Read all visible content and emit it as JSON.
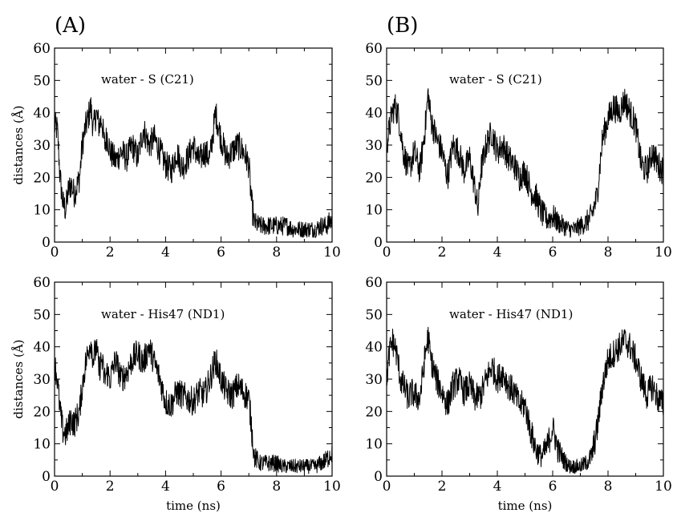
{
  "panel_labels": [
    "(A)",
    "(B)"
  ],
  "chart_data": [
    {
      "type": "line",
      "panel": "(A)",
      "annotation": "water - S (C21)",
      "xlabel": "",
      "ylabel": "distances (Å)",
      "xlim": [
        0,
        10
      ],
      "ylim": [
        0,
        60
      ],
      "xticks": [
        0,
        2,
        4,
        6,
        8,
        10
      ],
      "yticks": [
        0,
        10,
        20,
        30,
        40,
        50,
        60
      ],
      "grid": false,
      "series": [
        {
          "x": [
            0,
            0.1,
            0.2,
            0.3,
            0.4,
            0.5,
            0.6,
            0.7,
            0.8,
            0.9,
            1.0,
            1.1,
            1.2,
            1.3,
            1.4,
            1.5,
            1.6,
            1.7,
            1.8,
            1.9,
            2.0,
            2.2,
            2.4,
            2.6,
            2.8,
            3.0,
            3.2,
            3.4,
            3.6,
            3.8,
            4.0,
            4.2,
            4.4,
            4.6,
            4.8,
            5.0,
            5.2,
            5.4,
            5.6,
            5.8,
            6.0,
            6.2,
            6.4,
            6.6,
            6.8,
            7.0,
            7.1,
            7.2,
            7.4,
            7.6,
            7.8,
            8.0,
            8.2,
            8.4,
            8.6,
            8.8,
            9.0,
            9.2,
            9.4,
            9.6,
            9.8,
            10.0
          ],
          "y": [
            36,
            35,
            20,
            12,
            10,
            16,
            18,
            15,
            17,
            20,
            30,
            35,
            38,
            42,
            35,
            40,
            36,
            38,
            30,
            33,
            28,
            25,
            28,
            26,
            30,
            26,
            35,
            30,
            32,
            28,
            24,
            22,
            28,
            23,
            26,
            30,
            25,
            28,
            26,
            40,
            32,
            26,
            28,
            30,
            28,
            24,
            12,
            6,
            5,
            5,
            5,
            5,
            5,
            5,
            4,
            4,
            4,
            4,
            4,
            5,
            5,
            7
          ],
          "noise": 4.5
        }
      ]
    },
    {
      "type": "line",
      "panel": "(B)",
      "annotation": "water - S (C21)",
      "xlabel": "",
      "ylabel": "",
      "xlim": [
        0,
        10
      ],
      "ylim": [
        0,
        60
      ],
      "xticks": [
        0,
        2,
        4,
        6,
        8,
        10
      ],
      "yticks": [
        0,
        10,
        20,
        30,
        40,
        50,
        60
      ],
      "grid": false,
      "series": [
        {
          "x": [
            0,
            0.1,
            0.2,
            0.3,
            0.4,
            0.5,
            0.6,
            0.7,
            0.8,
            0.9,
            1.0,
            1.2,
            1.4,
            1.5,
            1.6,
            1.8,
            2.0,
            2.2,
            2.4,
            2.6,
            2.8,
            3.0,
            3.2,
            3.3,
            3.4,
            3.6,
            3.8,
            4.0,
            4.2,
            4.4,
            4.6,
            4.8,
            5.0,
            5.2,
            5.4,
            5.6,
            5.8,
            6.0,
            6.2,
            6.4,
            6.6,
            6.8,
            7.0,
            7.2,
            7.4,
            7.6,
            7.8,
            8.0,
            8.2,
            8.4,
            8.6,
            8.8,
            9.0,
            9.2,
            9.4,
            9.6,
            9.8,
            10.0
          ],
          "y": [
            30,
            35,
            40,
            42,
            40,
            35,
            28,
            25,
            22,
            25,
            28,
            22,
            36,
            46,
            38,
            32,
            28,
            20,
            30,
            28,
            22,
            26,
            16,
            10,
            22,
            30,
            34,
            28,
            30,
            26,
            24,
            20,
            22,
            16,
            14,
            9,
            7,
            8,
            6,
            5,
            4,
            4,
            5,
            6,
            8,
            14,
            32,
            38,
            42,
            40,
            44,
            40,
            36,
            24,
            22,
            28,
            24,
            22
          ],
          "noise": 4.5
        }
      ]
    },
    {
      "type": "line",
      "panel": "(A)",
      "annotation": "water - His47 (ND1)",
      "xlabel": "time (ns)",
      "ylabel": "distances (Å)",
      "xlim": [
        0,
        10
      ],
      "ylim": [
        0,
        60
      ],
      "xticks": [
        0,
        2,
        4,
        6,
        8,
        10
      ],
      "yticks": [
        0,
        10,
        20,
        30,
        40,
        50,
        60
      ],
      "grid": false,
      "series": [
        {
          "x": [
            0,
            0.1,
            0.2,
            0.3,
            0.4,
            0.5,
            0.6,
            0.7,
            0.8,
            0.9,
            1.0,
            1.1,
            1.2,
            1.3,
            1.4,
            1.5,
            1.6,
            1.7,
            1.8,
            1.9,
            2.0,
            2.2,
            2.4,
            2.6,
            2.8,
            3.0,
            3.2,
            3.4,
            3.6,
            3.8,
            4.0,
            4.2,
            4.4,
            4.6,
            4.8,
            5.0,
            5.2,
            5.4,
            5.6,
            5.8,
            6.0,
            6.2,
            6.4,
            6.6,
            6.8,
            7.0,
            7.1,
            7.2,
            7.4,
            7.6,
            7.8,
            8.0,
            8.2,
            8.4,
            8.6,
            8.8,
            9.0,
            9.2,
            9.4,
            9.6,
            9.8,
            10.0
          ],
          "y": [
            35,
            30,
            20,
            14,
            13,
            15,
            18,
            16,
            18,
            20,
            28,
            34,
            38,
            42,
            36,
            40,
            33,
            36,
            30,
            32,
            30,
            36,
            30,
            32,
            36,
            38,
            35,
            40,
            35,
            30,
            23,
            22,
            26,
            25,
            24,
            23,
            26,
            25,
            30,
            36,
            30,
            26,
            25,
            28,
            26,
            24,
            15,
            6,
            4,
            4,
            4,
            4,
            3,
            3,
            3,
            3,
            3,
            3,
            3,
            4,
            5,
            8
          ],
          "noise": 4.5
        }
      ]
    },
    {
      "type": "line",
      "panel": "(B)",
      "annotation": "water - His47 (ND1)",
      "xlabel": "time (ns)",
      "ylabel": "",
      "xlim": [
        0,
        10
      ],
      "ylim": [
        0,
        60
      ],
      "xticks": [
        0,
        2,
        4,
        6,
        8,
        10
      ],
      "yticks": [
        0,
        10,
        20,
        30,
        40,
        50,
        60
      ],
      "grid": false,
      "series": [
        {
          "x": [
            0,
            0.1,
            0.2,
            0.3,
            0.4,
            0.5,
            0.6,
            0.7,
            0.8,
            0.9,
            1.0,
            1.2,
            1.4,
            1.5,
            1.6,
            1.8,
            2.0,
            2.2,
            2.4,
            2.6,
            2.8,
            3.0,
            3.2,
            3.4,
            3.6,
            3.8,
            4.0,
            4.2,
            4.4,
            4.6,
            4.8,
            5.0,
            5.2,
            5.4,
            5.6,
            5.8,
            6.0,
            6.2,
            6.4,
            6.6,
            6.8,
            7.0,
            7.2,
            7.4,
            7.6,
            7.8,
            8.0,
            8.2,
            8.4,
            8.6,
            8.8,
            9.0,
            9.2,
            9.4,
            9.6,
            9.8,
            10.0
          ],
          "y": [
            30,
            38,
            42,
            40,
            36,
            30,
            28,
            26,
            24,
            26,
            25,
            24,
            38,
            43,
            36,
            30,
            26,
            22,
            28,
            30,
            26,
            28,
            24,
            25,
            30,
            34,
            30,
            32,
            28,
            26,
            22,
            22,
            14,
            8,
            6,
            9,
            15,
            8,
            5,
            3,
            3,
            3,
            4,
            6,
            14,
            28,
            36,
            38,
            40,
            42,
            40,
            36,
            30,
            25,
            28,
            24,
            22
          ],
          "noise": 4.5
        }
      ]
    }
  ]
}
